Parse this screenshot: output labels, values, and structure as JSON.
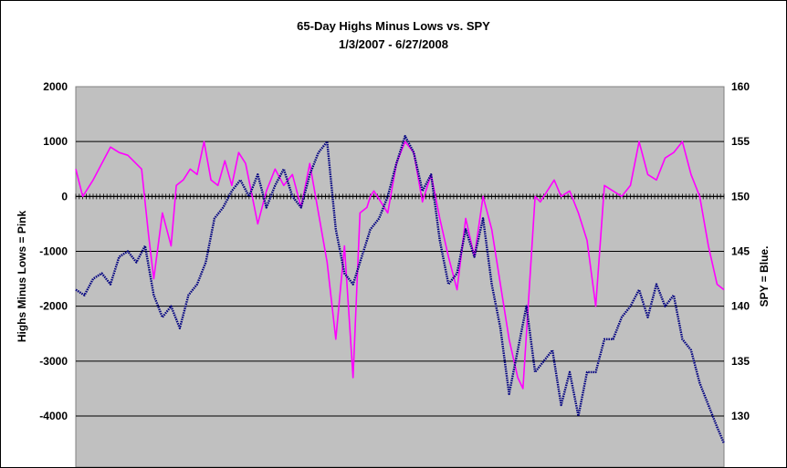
{
  "chart_data": {
    "type": "line",
    "title": "65-Day Highs Minus Lows vs. SPY",
    "subtitle": "1/3/2007  - 6/27/2008",
    "ylabel_left": "Highs Minus Lows = Pink",
    "ylabel_right": "SPY = Blue.",
    "ylim_left": [
      -4800,
      2000
    ],
    "ylim_right": [
      126,
      160
    ],
    "yticks_left": [
      2000,
      1000,
      0,
      -1000,
      -2000,
      -3000,
      -4000
    ],
    "yticks_right": [
      160,
      155,
      150,
      145,
      140,
      135,
      130
    ],
    "grid": true,
    "background": "#C0C0C0",
    "n_days": 375,
    "series": [
      {
        "name": "Highs Minus Lows",
        "axis": "left",
        "color": "#FF00FF",
        "x": [
          0,
          4,
          10,
          20,
          25,
          30,
          38,
          42,
          45,
          50,
          55,
          58,
          62,
          66,
          70,
          74,
          78,
          82,
          86,
          90,
          94,
          98,
          105,
          110,
          115,
          120,
          125,
          130,
          135,
          140,
          145,
          150,
          155,
          160,
          164,
          168,
          170,
          172,
          176,
          180,
          185,
          190,
          195,
          200,
          205,
          210,
          215,
          220,
          225,
          230,
          235,
          240,
          245,
          250,
          255,
          258,
          262,
          265,
          268,
          272,
          276,
          280,
          285,
          290,
          295,
          300,
          305,
          310,
          315,
          320,
          325,
          330,
          335,
          340,
          345,
          350,
          355,
          360,
          365,
          370,
          374
        ],
        "values": [
          500,
          0,
          300,
          900,
          800,
          750,
          500,
          -700,
          -1500,
          -300,
          -900,
          200,
          300,
          500,
          400,
          1000,
          300,
          200,
          650,
          200,
          800,
          600,
          -500,
          100,
          500,
          200,
          400,
          -200,
          600,
          -300,
          -1200,
          -2600,
          -900,
          -3300,
          -300,
          -200,
          0,
          100,
          -100,
          -300,
          600,
          1000,
          800,
          -100,
          400,
          -400,
          -1100,
          -1700,
          -400,
          -1100,
          0,
          -600,
          -1600,
          -2600,
          -3300,
          -3500,
          -1500,
          0,
          -100,
          100,
          300,
          0,
          100,
          -300,
          -800,
          -2000,
          200,
          100,
          0,
          200,
          1000,
          400,
          300,
          700,
          800,
          1000,
          400,
          0,
          -900,
          -1600,
          -1700
        ]
      },
      {
        "name": "SPY",
        "axis": "right",
        "color": "#000080",
        "x": [
          0,
          5,
          10,
          15,
          20,
          25,
          30,
          35,
          40,
          45,
          50,
          55,
          60,
          65,
          70,
          75,
          80,
          85,
          90,
          95,
          100,
          105,
          110,
          115,
          120,
          125,
          130,
          135,
          140,
          145,
          150,
          155,
          160,
          165,
          170,
          175,
          180,
          185,
          190,
          195,
          200,
          205,
          210,
          215,
          220,
          225,
          230,
          235,
          240,
          245,
          250,
          255,
          260,
          265,
          270,
          275,
          280,
          285,
          290,
          295,
          300,
          305,
          310,
          315,
          320,
          325,
          330,
          335,
          340,
          345,
          350,
          355,
          360,
          365,
          370,
          374
        ],
        "values": [
          141.5,
          141,
          142.5,
          143,
          142,
          144.5,
          145,
          144,
          145.5,
          141,
          139,
          140,
          138,
          141,
          142,
          144,
          148,
          149,
          150.5,
          151.5,
          150,
          152,
          149,
          151,
          152.5,
          150,
          149,
          152,
          154,
          155,
          147,
          143,
          142,
          144.5,
          147,
          148,
          150,
          153,
          155.5,
          154,
          150.5,
          152,
          146,
          142,
          143,
          147,
          144.5,
          148,
          142,
          138,
          132,
          136,
          140,
          134,
          135,
          136,
          131,
          134,
          130,
          134,
          134,
          137,
          137,
          139,
          140,
          141.5,
          139,
          142,
          140,
          141,
          137,
          136,
          133,
          131,
          129,
          127.5
        ]
      }
    ]
  }
}
